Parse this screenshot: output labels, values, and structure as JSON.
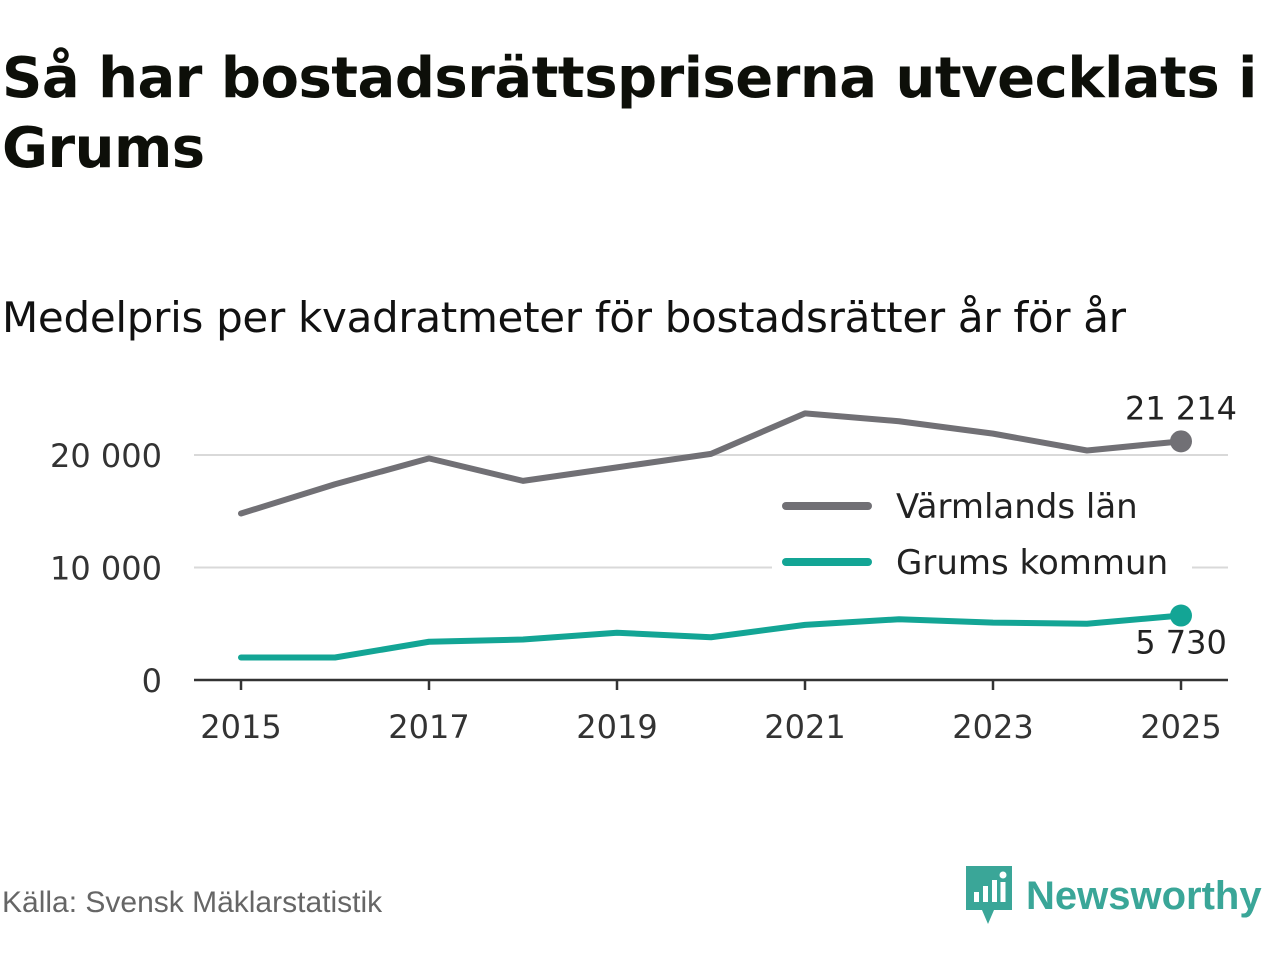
{
  "title": "Så har bostadsrättspriserna utvecklats i Grums",
  "subtitle": "Medelpris per kvadratmeter för bostadsrätter år för år",
  "source": "Källa: Svensk Mäklarstatistik",
  "brand": {
    "name": "Newsworthy",
    "icon": "newsworthy-logo-icon",
    "color": "#3aa698"
  },
  "chart_data": {
    "type": "line",
    "title": "Medelpris per kvadratmeter för bostadsrätter år för år",
    "xlabel": "",
    "ylabel": "",
    "x": [
      2015,
      2016,
      2017,
      2018,
      2019,
      2020,
      2021,
      2022,
      2023,
      2024,
      2025
    ],
    "xticks": [
      "2015",
      "2017",
      "2019",
      "2021",
      "2023",
      "2025"
    ],
    "xtick_values": [
      2015,
      2017,
      2019,
      2021,
      2023,
      2025
    ],
    "yticks": [
      "0",
      "10 000",
      "20 000"
    ],
    "ytick_values": [
      0,
      10000,
      20000
    ],
    "ylim": [
      0,
      24000
    ],
    "xlim": [
      2014.5,
      2025.5
    ],
    "grid": true,
    "legend_position": "right",
    "series": [
      {
        "name": "Värmlands län",
        "color": "#717075",
        "values": [
          14800,
          17400,
          19700,
          17700,
          18900,
          20100,
          23700,
          23000,
          21900,
          20400,
          21214
        ],
        "end_label": "21 214"
      },
      {
        "name": "Grums kommun",
        "color": "#13a595",
        "values": [
          2000,
          2000,
          3400,
          3600,
          4200,
          3800,
          4900,
          5400,
          5100,
          5000,
          5730
        ],
        "end_label": "5 730"
      }
    ]
  }
}
